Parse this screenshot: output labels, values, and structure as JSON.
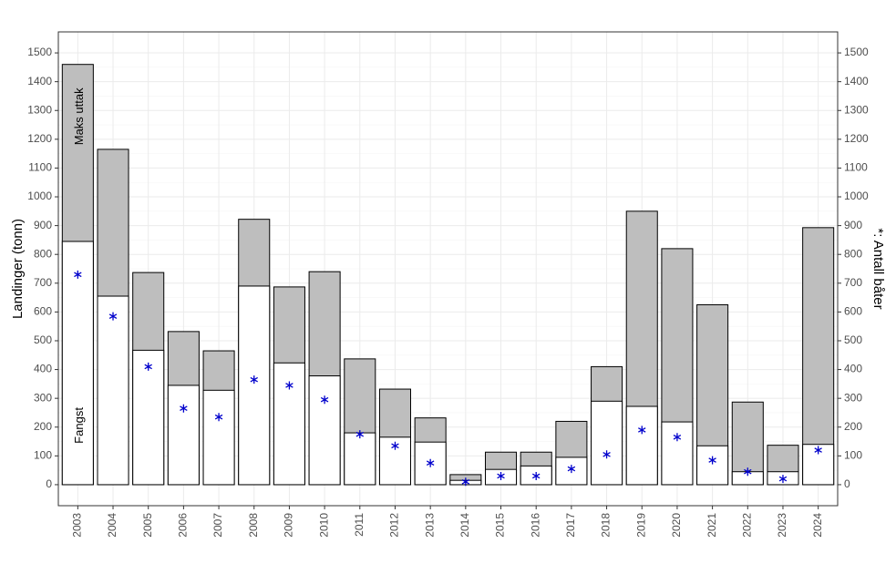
{
  "chart_data": {
    "type": "bar",
    "y_label": "Landinger (tonn)",
    "y2_label": "*: Antall båter",
    "categories": [
      "2003",
      "2004",
      "2005",
      "2006",
      "2007",
      "2008",
      "2009",
      "2010",
      "2011",
      "2012",
      "2013",
      "2014",
      "2015",
      "2016",
      "2017",
      "2018",
      "2019",
      "2020",
      "2021",
      "2022",
      "2023",
      "2024"
    ],
    "series": [
      {
        "name": "Maks uttak",
        "color": "#bebebe",
        "values": [
          1460,
          1165,
          737,
          532,
          465,
          922,
          687,
          740,
          437,
          332,
          232,
          35,
          113,
          113,
          220,
          410,
          950,
          820,
          625,
          287,
          137,
          893
        ]
      },
      {
        "name": "Fangst",
        "color": "#ffffff",
        "values": [
          845,
          655,
          467,
          345,
          328,
          690,
          423,
          378,
          180,
          165,
          148,
          15,
          53,
          65,
          95,
          290,
          272,
          218,
          135,
          45,
          45,
          140
        ]
      },
      {
        "name": "Antall båter",
        "color": "#0000cc",
        "axis": "y2",
        "values": [
          730,
          585,
          410,
          265,
          235,
          365,
          345,
          295,
          175,
          135,
          75,
          10,
          30,
          30,
          55,
          105,
          190,
          165,
          85,
          45,
          20,
          120
        ]
      }
    ],
    "ylim": [
      -73,
      1573
    ],
    "yticks": [
      0,
      100,
      200,
      300,
      400,
      500,
      600,
      700,
      800,
      900,
      1000,
      1100,
      1200,
      1300,
      1400,
      1500
    ],
    "y2lim": [
      -73,
      1573
    ],
    "y2ticks": [
      0,
      100,
      200,
      300,
      400,
      500,
      600,
      700,
      800,
      900,
      1000,
      1100,
      1200,
      1300,
      1400,
      1500
    ],
    "grid": true
  }
}
